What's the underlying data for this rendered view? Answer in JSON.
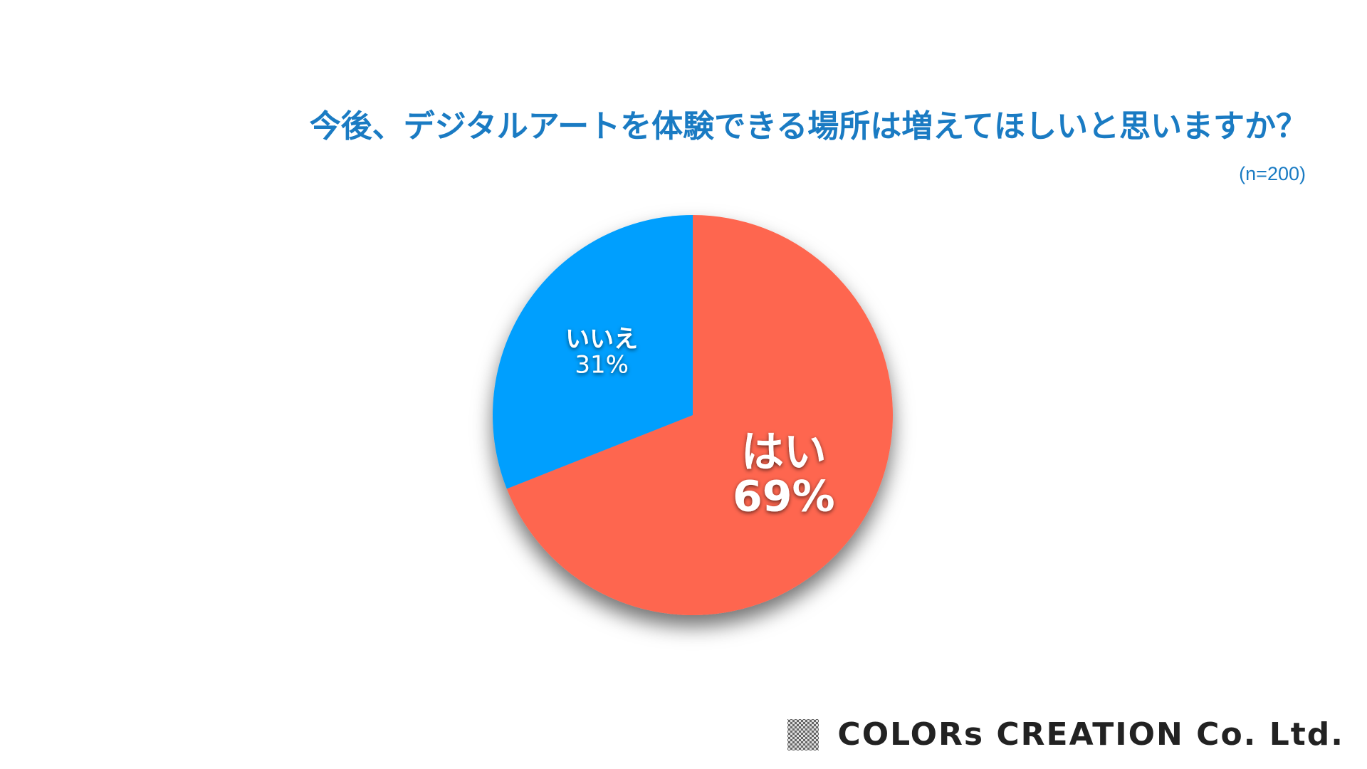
{
  "chart_data": {
    "type": "pie",
    "title": "今後、デジタルアートを体験できる場所は増えてほしいと思いますか？",
    "subtitle": "(n=200)",
    "categories": [
      "はい",
      "いいえ"
    ],
    "values": [
      69,
      31
    ],
    "value_labels": [
      "69%",
      "31%"
    ],
    "colors": [
      "#fe6650",
      "#069ffe"
    ]
  },
  "footer": "COLORs CREATION Co. Ltd."
}
